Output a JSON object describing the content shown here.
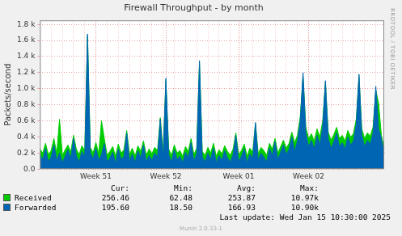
{
  "chart_data": {
    "type": "area",
    "title": "Firewall Throughput - by month",
    "y_label": "Packets/second",
    "side_text": "RRDTOOL / TOBI OETIKER",
    "categories": [
      null,
      null,
      null,
      null,
      null,
      null,
      null,
      null,
      null,
      null,
      null,
      null,
      null,
      null,
      null,
      null,
      null,
      null,
      null,
      null,
      "Week 51",
      null,
      null,
      null,
      null,
      null,
      null,
      null,
      null,
      null,
      null,
      null,
      null,
      null,
      null,
      null,
      null,
      null,
      null,
      null,
      null,
      null,
      null,
      null,
      null,
      "Week 52",
      null,
      null,
      null,
      null,
      null,
      null,
      null,
      null,
      null,
      null,
      null,
      null,
      null,
      null,
      null,
      null,
      null,
      null,
      null,
      null,
      null,
      null,
      null,
      null,
      null,
      "Week 01",
      null,
      null,
      null,
      null,
      null,
      null,
      null,
      null,
      null,
      null,
      null,
      null,
      null,
      null,
      null,
      null,
      null,
      null,
      null,
      null,
      null,
      null,
      null,
      null,
      "Week 02",
      null,
      null,
      null,
      null,
      null,
      null,
      null,
      null,
      null,
      null,
      null,
      null,
      null,
      null,
      null,
      null,
      null,
      null,
      null,
      null,
      null,
      null,
      null,
      null,
      null,
      null,
      null
    ],
    "series": [
      {
        "name": "Received",
        "color": "#00cc00",
        "values": [
          250,
          200,
          320,
          180,
          230,
          380,
          190,
          620,
          170,
          240,
          300,
          210,
          420,
          250,
          180,
          290,
          230,
          1650,
          270,
          200,
          330,
          190,
          600,
          380,
          170,
          220,
          280,
          160,
          310,
          200,
          240,
          480,
          180,
          260,
          160,
          290,
          220,
          350,
          170,
          250,
          190,
          270,
          230,
          640,
          210,
          1100,
          250,
          170,
          300,
          200,
          230,
          160,
          280,
          220,
          380,
          180,
          260,
          1320,
          220,
          170,
          270,
          200,
          320,
          160,
          240,
          190,
          290,
          220,
          170,
          250,
          450,
          180,
          230,
          310,
          160,
          260,
          210,
          560,
          190,
          270,
          230,
          170,
          320,
          250,
          380,
          200,
          280,
          360,
          260,
          320,
          460,
          330,
          420,
          650,
          1150,
          520,
          380,
          440,
          350,
          500,
          400,
          590,
          1080,
          460,
          360,
          430,
          520,
          380,
          420,
          350,
          480,
          400,
          440,
          620,
          1150,
          500,
          380,
          450,
          410,
          520,
          980,
          820,
          420,
          256.46
        ],
        "stats": [
          256.46,
          62.48,
          253.87,
          {
            "value": 10970,
            "label": "10.97k"
          }
        ]
      },
      {
        "name": "Forwarded",
        "color": "#0066b3",
        "values": [
          180,
          120,
          260,
          90,
          150,
          300,
          110,
          200,
          80,
          160,
          240,
          130,
          380,
          170,
          90,
          220,
          150,
          1680,
          200,
          130,
          260,
          110,
          180,
          320,
          90,
          140,
          210,
          70,
          250,
          120,
          160,
          450,
          100,
          190,
          80,
          230,
          140,
          300,
          90,
          170,
          110,
          200,
          150,
          620,
          130,
          1130,
          180,
          90,
          240,
          120,
          160,
          80,
          210,
          140,
          330,
          100,
          190,
          1350,
          150,
          90,
          200,
          120,
          260,
          80,
          170,
          110,
          230,
          140,
          90,
          180,
          420,
          100,
          160,
          250,
          80,
          190,
          130,
          580,
          110,
          200,
          150,
          90,
          260,
          170,
          340,
          120,
          210,
          300,
          180,
          250,
          400,
          220,
          350,
          600,
          1200,
          450,
          280,
          360,
          250,
          420,
          300,
          520,
          1100,
          380,
          260,
          340,
          450,
          280,
          330,
          250,
          400,
          300,
          350,
          560,
          1180,
          420,
          280,
          360,
          310,
          450,
          1030,
          500,
          380,
          195.6
        ],
        "stats": [
          {
            "value": 195.6,
            "label": "195.60"
          },
          {
            "value": 18.5,
            "label": "18.50"
          },
          166.93,
          {
            "value": 10900,
            "label": "10.90k"
          }
        ]
      }
    ],
    "stat_columns": [
      "Cur:",
      "Min:",
      "Avg:",
      "Max:"
    ],
    "ylim": [
      0,
      1850
    ],
    "yticks": [
      {
        "value": 0,
        "label": "0.0"
      },
      {
        "value": 200,
        "label": "0.2 k"
      },
      {
        "value": 400,
        "label": "0.4 k"
      },
      {
        "value": 600,
        "label": "0.6 k"
      },
      {
        "value": 800,
        "label": "0.8 k"
      },
      {
        "value": 1000,
        "label": "1.0 k"
      },
      {
        "value": 1200,
        "label": "1.2 k"
      },
      {
        "value": 1400,
        "label": "1.4 k"
      },
      {
        "value": 1600,
        "label": "1.6 k"
      },
      {
        "value": 1800,
        "label": "1.8 k"
      }
    ],
    "grid": true,
    "last_update": "Last update: Wed Jan 15 10:30:00 2025",
    "footer": "Munin 2.0.33-1"
  }
}
